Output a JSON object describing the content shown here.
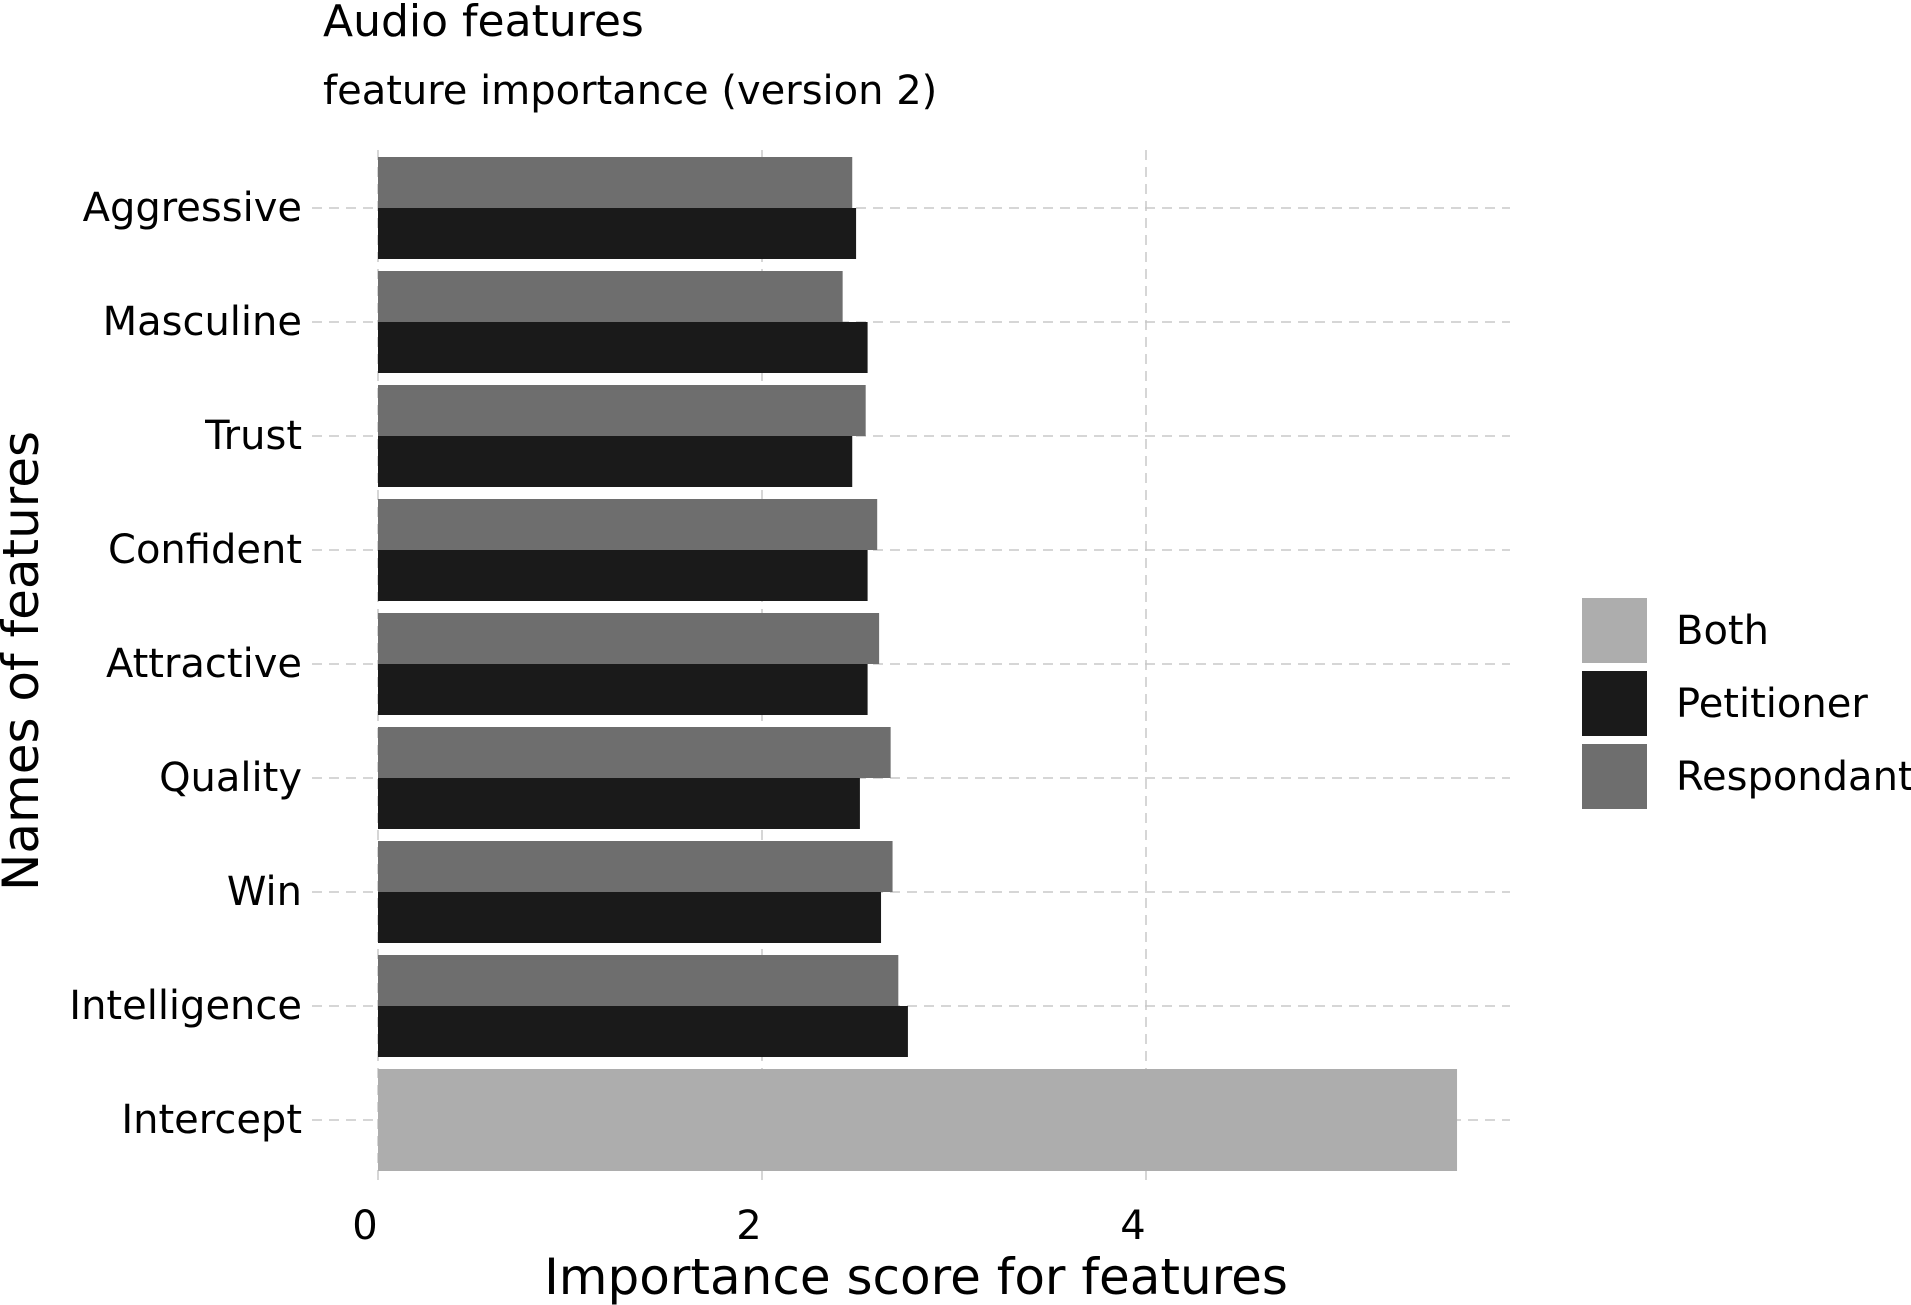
{
  "chart_data": {
    "type": "bar",
    "orientation": "horizontal",
    "title": "Audio features",
    "subtitle": "feature importance (version 2)",
    "xlabel": "Importance score for features",
    "ylabel": "Names of features",
    "xlim": [
      0,
      5.9
    ],
    "xticks": [
      0,
      2,
      4
    ],
    "grid": true,
    "legend_position": "right",
    "categories": [
      "Aggressive",
      "Masculine",
      "Trust",
      "Confident",
      "Attractive",
      "Quality",
      "Win",
      "Intelligence",
      "Intercept"
    ],
    "series": [
      {
        "name": "Respondant",
        "color": "#6e6e6e",
        "values": [
          2.47,
          2.42,
          2.54,
          2.6,
          2.61,
          2.67,
          2.68,
          2.71,
          null
        ]
      },
      {
        "name": "Petitioner",
        "color": "#1a1a1a",
        "values": [
          2.49,
          2.55,
          2.47,
          2.55,
          2.55,
          2.51,
          2.62,
          2.76,
          null
        ]
      },
      {
        "name": "Both",
        "color": "#adadad",
        "values": [
          null,
          null,
          null,
          null,
          null,
          null,
          null,
          null,
          5.62
        ]
      }
    ],
    "legend": [
      {
        "label": "Both",
        "color": "#adadad"
      },
      {
        "label": "Petitioner",
        "color": "#1a1a1a"
      },
      {
        "label": "Respondant",
        "color": "#6e6e6e"
      }
    ]
  }
}
